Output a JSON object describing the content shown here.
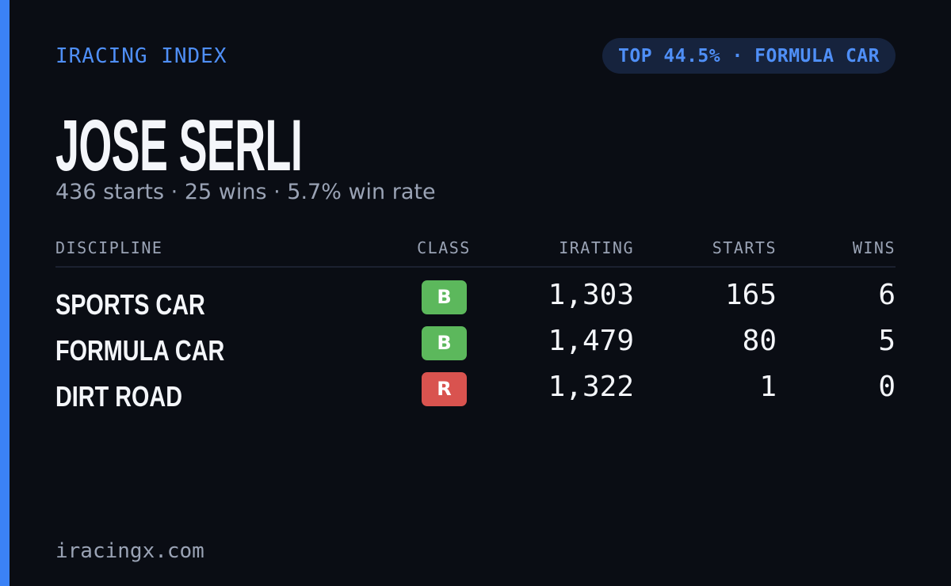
{
  "header": {
    "brand": "IRACING INDEX",
    "badge": "TOP 44.5% · FORMULA CAR"
  },
  "profile": {
    "name": "JOSE SERLI",
    "summary": "436 starts · 25 wins · 5.7% win rate"
  },
  "table": {
    "columns": [
      "DISCIPLINE",
      "CLASS",
      "IRATING",
      "STARTS",
      "WINS"
    ],
    "rows": [
      {
        "discipline": "SPORTS CAR",
        "class": "B",
        "class_color": "#5cb85c",
        "irating": "1,303",
        "starts": "165",
        "wins": "6"
      },
      {
        "discipline": "FORMULA CAR",
        "class": "B",
        "class_color": "#5cb85c",
        "irating": "1,479",
        "starts": "80",
        "wins": "5"
      },
      {
        "discipline": "DIRT ROAD",
        "class": "R",
        "class_color": "#d9534f",
        "irating": "1,322",
        "starts": "1",
        "wins": "0"
      }
    ]
  },
  "footer": {
    "site": "iracingx.com"
  }
}
